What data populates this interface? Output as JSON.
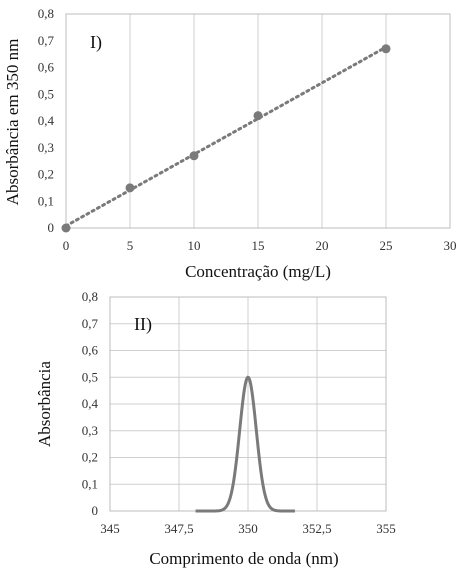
{
  "chart_data": [
    {
      "type": "scatter",
      "panel_label": "I)",
      "xlabel": "Concentração (mg/L)",
      "ylabel": "Absorbância em 350 nm",
      "xlim": [
        0,
        30
      ],
      "ylim": [
        0,
        0.8
      ],
      "x_ticks": [
        "0",
        "5",
        "10",
        "15",
        "20",
        "25",
        "30"
      ],
      "y_ticks": [
        "0",
        "0,1",
        "0,2",
        "0,3",
        "0,4",
        "0,5",
        "0,6",
        "0,7",
        "0,8"
      ],
      "grid": "vertical",
      "trendline": "linear, dotted",
      "marker_color": "#7a7a7a",
      "series": [
        {
          "x": [
            0,
            5,
            10,
            15,
            25
          ],
          "y": [
            0,
            0.15,
            0.27,
            0.42,
            0.67
          ]
        }
      ]
    },
    {
      "type": "line",
      "panel_label": "II)",
      "xlabel": "Comprimento de onda (nm)",
      "ylabel": "Absorbância",
      "xlim": [
        345,
        355
      ],
      "ylim": [
        0,
        0.8
      ],
      "x_ticks": [
        "345",
        "347,5",
        "350",
        "352,5",
        "355"
      ],
      "y_ticks": [
        "0",
        "0,1",
        "0,2",
        "0,3",
        "0,4",
        "0,5",
        "0,6",
        "0,7",
        "0,8"
      ],
      "grid": "both",
      "line_color": "#7a7a7a",
      "series": [
        {
          "shape": "gaussian",
          "peak_x": 350,
          "peak_y": 0.5,
          "sigma": 0.3,
          "x_start": 348.1,
          "x_end": 351.7
        }
      ]
    }
  ]
}
